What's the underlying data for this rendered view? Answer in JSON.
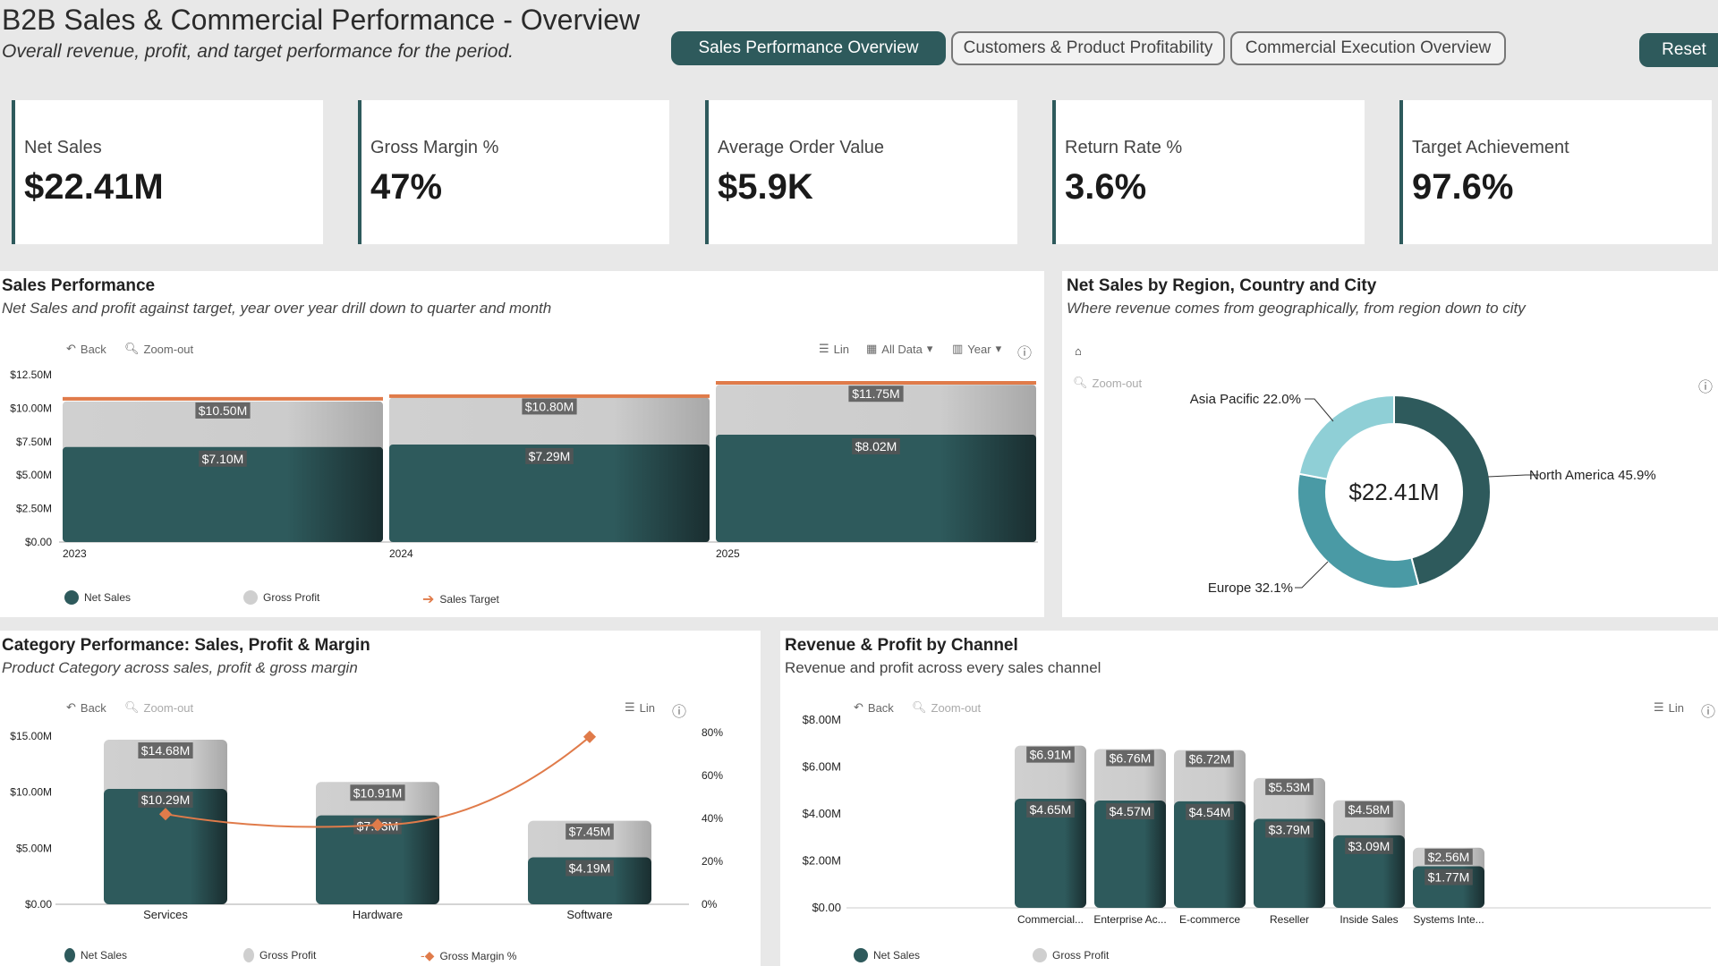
{
  "header": {
    "title": "B2B Sales & Commercial Performance - Overview",
    "subtitle": "Overall revenue, profit, and target performance for the period.",
    "nav": [
      "Sales Performance Overview",
      "Customers & Product Profitability",
      "Commercial Execution Overview"
    ],
    "reset_label": "Reset"
  },
  "kpis": [
    {
      "label": "Net Sales",
      "value": "$22.41M"
    },
    {
      "label": "Gross Margin %",
      "value": "47%"
    },
    {
      "label": "Average Order Value",
      "value": "$5.9K"
    },
    {
      "label": "Return Rate %",
      "value": "3.6%"
    },
    {
      "label": "Target Achievement",
      "value": "97.6%"
    }
  ],
  "colors": {
    "accent": "#2e5a5c",
    "gross_profit": "#cfcfcf",
    "target": "#e07b4a",
    "donut_light": "#8fcfd6",
    "donut_mid": "#4a9aa5",
    "donut_dark": "#2e5a5c"
  },
  "toolbar": {
    "back": "Back",
    "zoom_out": "Zoom-out",
    "lin": "Lin",
    "all_data": "All Data",
    "year": "Year"
  },
  "sales_panel": {
    "title": "Sales Performance",
    "subtitle": "Net Sales and profit against target, year over year drill down to quarter and month",
    "legend": [
      "Net Sales",
      "Gross Profit",
      "Sales Target"
    ]
  },
  "region_panel": {
    "title": "Net Sales by Region, Country and City",
    "subtitle": "Where revenue comes from geographically, from region down to city"
  },
  "category_panel": {
    "title": "Category Performance: Sales, Profit & Margin",
    "subtitle": "Product Category across sales, profit & gross margin",
    "legend": [
      "Net Sales",
      "Gross Profit",
      "Gross Margin %"
    ]
  },
  "channel_panel": {
    "title": "Revenue & Profit by Channel",
    "subtitle": "Revenue and profit across every sales channel",
    "legend": [
      "Net Sales",
      "Gross Profit"
    ]
  },
  "chart_data": [
    {
      "id": "sales_performance",
      "type": "bar",
      "categories": [
        "2023",
        "2024",
        "2025"
      ],
      "series": [
        {
          "name": "Net Sales",
          "values": [
            10.5,
            10.8,
            11.75
          ],
          "labels": [
            "$10.50M",
            "$10.80M",
            "$11.75M"
          ]
        },
        {
          "name": "Gross Profit",
          "values": [
            7.1,
            7.29,
            8.02
          ],
          "labels": [
            "$7.10M",
            "$7.29M",
            "$8.02M"
          ]
        },
        {
          "name": "Sales Target",
          "values": [
            10.7,
            10.9,
            11.9
          ]
        }
      ],
      "yticks": [
        "$0.00",
        "$2.50M",
        "$5.00M",
        "$7.50M",
        "$10.00M",
        "$12.50M"
      ],
      "ylim": [
        0,
        12.5
      ]
    },
    {
      "id": "region_donut",
      "type": "pie",
      "center_label": "$22.41M",
      "slices": [
        {
          "name": "North America",
          "value": 45.9,
          "label": "North America 45.9%"
        },
        {
          "name": "Europe",
          "value": 32.1,
          "label": "Europe 32.1%"
        },
        {
          "name": "Asia Pacific",
          "value": 22.0,
          "label": "Asia Pacific 22.0%"
        }
      ]
    },
    {
      "id": "category_performance",
      "type": "bar",
      "categories": [
        "Services",
        "Hardware",
        "Software"
      ],
      "series": [
        {
          "name": "Net Sales",
          "values": [
            14.68,
            10.91,
            7.45
          ],
          "labels": [
            "$14.68M",
            "$10.91M",
            "$7.45M"
          ]
        },
        {
          "name": "Gross Profit",
          "values": [
            10.29,
            7.93,
            4.19
          ],
          "labels": [
            "$10.29M",
            "$7.93M",
            "$4.19M"
          ]
        },
        {
          "name": "Gross Margin %",
          "values": [
            42,
            37,
            78
          ]
        }
      ],
      "yticks": [
        "$0.00",
        "$5.00M",
        "$10.00M",
        "$15.00M"
      ],
      "ylim": [
        0,
        15
      ],
      "y2ticks": [
        "0%",
        "20%",
        "40%",
        "60%",
        "80%"
      ],
      "y2lim": [
        0,
        80
      ]
    },
    {
      "id": "channel_revenue",
      "type": "bar",
      "categories": [
        "Commercial...",
        "Enterprise Ac...",
        "E-commerce",
        "Reseller",
        "Inside Sales",
        "Systems Inte..."
      ],
      "series": [
        {
          "name": "Net Sales",
          "values": [
            6.91,
            6.76,
            6.72,
            5.53,
            4.58,
            2.56
          ],
          "labels": [
            "$6.91M",
            "$6.76M",
            "$6.72M",
            "$5.53M",
            "$4.58M",
            "$2.56M"
          ]
        },
        {
          "name": "Gross Profit",
          "values": [
            4.65,
            4.57,
            4.54,
            3.79,
            3.09,
            1.77
          ],
          "labels": [
            "$4.65M",
            "$4.57M",
            "$4.54M",
            "$3.79M",
            "$3.09M",
            "$1.77M"
          ]
        }
      ],
      "yticks": [
        "$0.00",
        "$2.00M",
        "$4.00M",
        "$6.00M",
        "$8.00M"
      ],
      "ylim": [
        0,
        8
      ]
    }
  ]
}
